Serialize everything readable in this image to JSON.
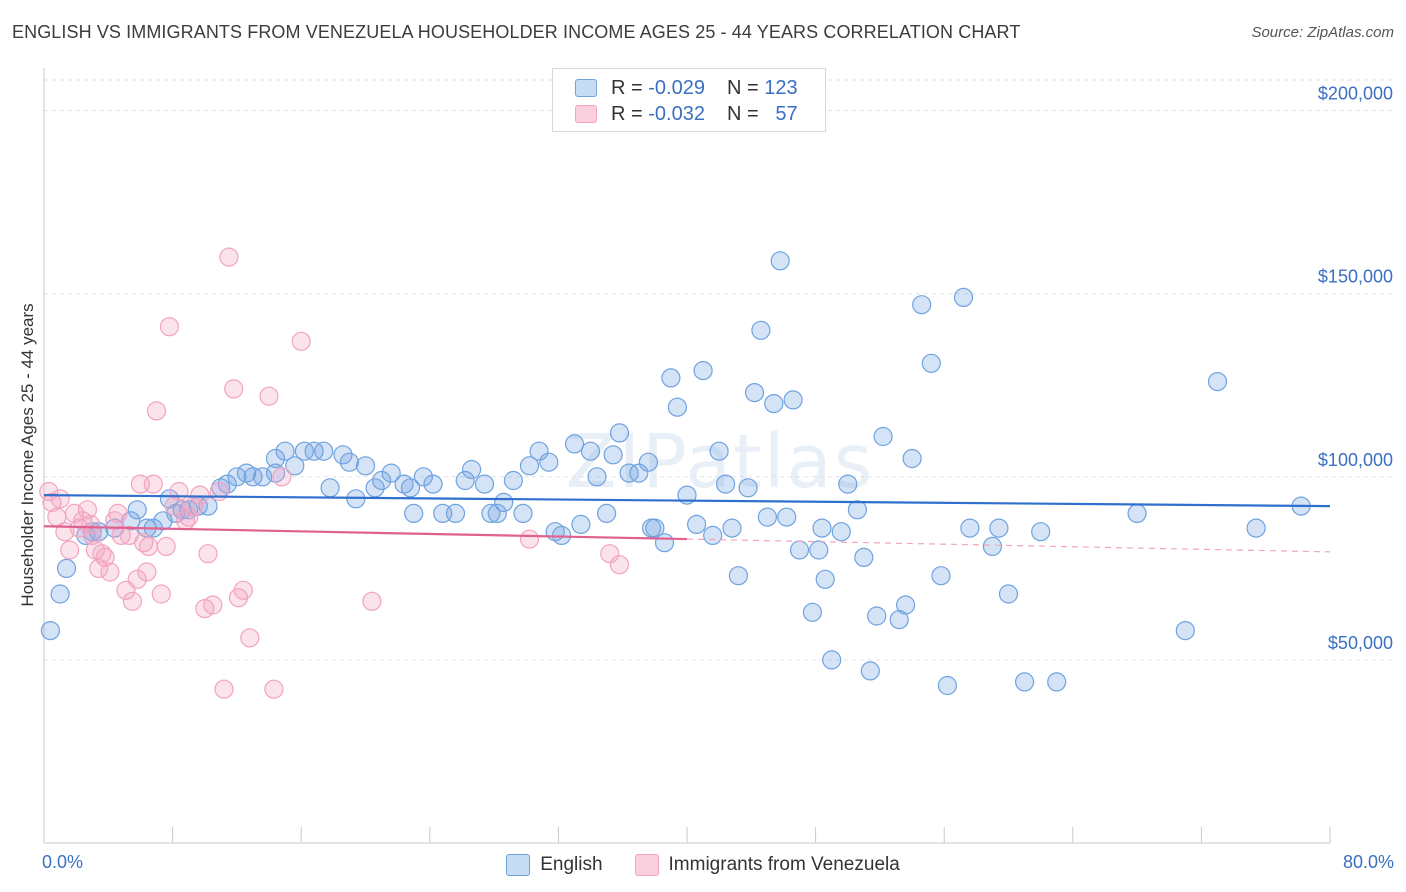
{
  "title": "ENGLISH VS IMMIGRANTS FROM VENEZUELA HOUSEHOLDER INCOME AGES 25 - 44 YEARS CORRELATION CHART",
  "source": "Source: ZipAtlas.com",
  "watermark": "ZIPatlas",
  "colors": {
    "english": "#6fa3e0",
    "english_line": "#2f6fce",
    "venezuela": "#f3a3bf",
    "venezuela_line": "#e06090",
    "axis_text": "#3a6fc4",
    "grid": "#e2e2e2"
  },
  "legend_top": {
    "english": {
      "r_label": "R =",
      "r_value": "-0.029",
      "n_label": "N =",
      "n_value": "123"
    },
    "venezuela": {
      "r_label": "R =",
      "r_value": "-0.032",
      "n_label": "N =",
      "n_value": "57"
    }
  },
  "legend_bottom": {
    "english": "English",
    "venezuela": "Immigrants from Venezuela"
  },
  "chart_data": {
    "type": "scatter",
    "xlabel": "",
    "ylabel": "Householder Income Ages 25 - 44 years",
    "xlim": [
      0,
      80
    ],
    "ylim": [
      0,
      210000
    ],
    "x_tick_labels": [
      "0.0%",
      "80.0%"
    ],
    "y_ticks": [
      {
        "value": 50000,
        "label": "$50,000"
      },
      {
        "value": 100000,
        "label": "$100,000"
      },
      {
        "value": 150000,
        "label": "$150,000"
      },
      {
        "value": 200000,
        "label": "$200,000"
      }
    ],
    "grid": "horizontal dashed",
    "legend_position": "top-center",
    "series": [
      {
        "name": "English",
        "trend": {
          "x0": 0,
          "y0": 95000,
          "x1": 80,
          "y1": 92000
        },
        "points": [
          [
            0.4,
            58000
          ],
          [
            1.0,
            68000
          ],
          [
            1.4,
            75000
          ],
          [
            2.6,
            84000
          ],
          [
            3.0,
            85000
          ],
          [
            3.4,
            85000
          ],
          [
            4.4,
            86000
          ],
          [
            5.4,
            88000
          ],
          [
            5.8,
            91000
          ],
          [
            6.4,
            86000
          ],
          [
            6.8,
            86000
          ],
          [
            7.4,
            88000
          ],
          [
            7.8,
            94000
          ],
          [
            8.2,
            90000
          ],
          [
            8.6,
            91000
          ],
          [
            9.0,
            91000
          ],
          [
            9.6,
            92000
          ],
          [
            10.2,
            92000
          ],
          [
            11.0,
            97000
          ],
          [
            11.4,
            98000
          ],
          [
            12.0,
            100000
          ],
          [
            12.6,
            101000
          ],
          [
            13.0,
            100000
          ],
          [
            13.6,
            100000
          ],
          [
            14.4,
            105000
          ],
          [
            15.0,
            107000
          ],
          [
            15.6,
            103000
          ],
          [
            16.2,
            107000
          ],
          [
            16.8,
            107000
          ],
          [
            17.4,
            107000
          ],
          [
            17.8,
            97000
          ],
          [
            18.6,
            106000
          ],
          [
            19.0,
            104000
          ],
          [
            19.4,
            94000
          ],
          [
            20.0,
            103000
          ],
          [
            20.6,
            97000
          ],
          [
            21.0,
            99000
          ],
          [
            21.6,
            101000
          ],
          [
            22.4,
            98000
          ],
          [
            22.8,
            97000
          ],
          [
            23.0,
            90000
          ],
          [
            23.6,
            100000
          ],
          [
            24.2,
            98000
          ],
          [
            24.8,
            90000
          ],
          [
            25.6,
            90000
          ],
          [
            26.2,
            99000
          ],
          [
            26.6,
            102000
          ],
          [
            27.4,
            98000
          ],
          [
            27.8,
            90000
          ],
          [
            28.6,
            93000
          ],
          [
            29.2,
            99000
          ],
          [
            29.8,
            90000
          ],
          [
            30.2,
            103000
          ],
          [
            30.8,
            107000
          ],
          [
            31.4,
            104000
          ],
          [
            31.8,
            85000
          ],
          [
            32.2,
            84000
          ],
          [
            33.0,
            109000
          ],
          [
            33.4,
            87000
          ],
          [
            34.0,
            107000
          ],
          [
            34.4,
            100000
          ],
          [
            35.0,
            90000
          ],
          [
            35.4,
            106000
          ],
          [
            35.8,
            112000
          ],
          [
            36.4,
            101000
          ],
          [
            37.0,
            101000
          ],
          [
            37.6,
            104000
          ],
          [
            38.0,
            86000
          ],
          [
            38.6,
            82000
          ],
          [
            39.0,
            127000
          ],
          [
            39.4,
            119000
          ],
          [
            40.0,
            95000
          ],
          [
            40.6,
            87000
          ],
          [
            41.0,
            129000
          ],
          [
            41.6,
            84000
          ],
          [
            42.0,
            107000
          ],
          [
            42.4,
            98000
          ],
          [
            42.8,
            86000
          ],
          [
            43.2,
            73000
          ],
          [
            43.8,
            97000
          ],
          [
            44.2,
            123000
          ],
          [
            44.6,
            140000
          ],
          [
            45.0,
            89000
          ],
          [
            45.4,
            120000
          ],
          [
            45.8,
            159000
          ],
          [
            46.2,
            89000
          ],
          [
            46.6,
            121000
          ],
          [
            47.0,
            80000
          ],
          [
            47.8,
            63000
          ],
          [
            48.2,
            80000
          ],
          [
            48.6,
            72000
          ],
          [
            49.0,
            50000
          ],
          [
            49.6,
            85000
          ],
          [
            50.0,
            98000
          ],
          [
            50.6,
            91000
          ],
          [
            51.0,
            78000
          ],
          [
            51.4,
            47000
          ],
          [
            51.8,
            62000
          ],
          [
            52.2,
            111000
          ],
          [
            53.2,
            61000
          ],
          [
            53.6,
            65000
          ],
          [
            54.0,
            105000
          ],
          [
            54.6,
            147000
          ],
          [
            55.2,
            131000
          ],
          [
            55.8,
            73000
          ],
          [
            57.2,
            149000
          ],
          [
            57.6,
            86000
          ],
          [
            59.0,
            81000
          ],
          [
            60.0,
            68000
          ],
          [
            62.0,
            85000
          ],
          [
            63.0,
            44000
          ],
          [
            68.0,
            90000
          ],
          [
            71.0,
            58000
          ],
          [
            73.0,
            126000
          ],
          [
            75.4,
            86000
          ],
          [
            78.2,
            92000
          ],
          [
            59.4,
            86000
          ],
          [
            56.2,
            43000
          ],
          [
            61.0,
            44000
          ],
          [
            37.8,
            86000
          ],
          [
            28.2,
            90000
          ],
          [
            14.4,
            101000
          ],
          [
            48.4,
            86000
          ]
        ]
      },
      {
        "name": "Immigrants from Venezuela",
        "trend": {
          "x0": 0,
          "y0": 86500,
          "x1": 40,
          "y1": 83000,
          "dash_x1": 80,
          "dash_y1": 79500
        },
        "points": [
          [
            0.3,
            96000
          ],
          [
            0.5,
            93000
          ],
          [
            0.8,
            89000
          ],
          [
            1.0,
            94000
          ],
          [
            1.3,
            85000
          ],
          [
            1.6,
            80000
          ],
          [
            1.9,
            90000
          ],
          [
            2.2,
            86000
          ],
          [
            2.4,
            88000
          ],
          [
            2.7,
            91000
          ],
          [
            3.0,
            84000
          ],
          [
            3.2,
            80000
          ],
          [
            3.4,
            75000
          ],
          [
            3.6,
            79000
          ],
          [
            3.8,
            78000
          ],
          [
            4.1,
            74000
          ],
          [
            4.4,
            88000
          ],
          [
            4.6,
            90000
          ],
          [
            4.8,
            84000
          ],
          [
            5.1,
            69000
          ],
          [
            5.3,
            84000
          ],
          [
            5.5,
            66000
          ],
          [
            5.8,
            72000
          ],
          [
            6.0,
            98000
          ],
          [
            6.2,
            82000
          ],
          [
            6.5,
            81000
          ],
          [
            6.8,
            98000
          ],
          [
            7.0,
            118000
          ],
          [
            7.3,
            68000
          ],
          [
            7.6,
            81000
          ],
          [
            7.8,
            141000
          ],
          [
            8.1,
            92000
          ],
          [
            8.4,
            96000
          ],
          [
            8.8,
            88000
          ],
          [
            9.0,
            89000
          ],
          [
            9.3,
            92000
          ],
          [
            10.0,
            64000
          ],
          [
            10.2,
            79000
          ],
          [
            10.5,
            65000
          ],
          [
            10.9,
            96000
          ],
          [
            11.2,
            42000
          ],
          [
            11.5,
            160000
          ],
          [
            11.8,
            124000
          ],
          [
            12.1,
            67000
          ],
          [
            12.4,
            69000
          ],
          [
            12.8,
            56000
          ],
          [
            14.0,
            122000
          ],
          [
            14.3,
            42000
          ],
          [
            14.8,
            100000
          ],
          [
            16.0,
            137000
          ],
          [
            20.4,
            66000
          ],
          [
            30.2,
            83000
          ],
          [
            35.2,
            79000
          ],
          [
            35.8,
            76000
          ],
          [
            9.7,
            95000
          ],
          [
            6.4,
            74000
          ],
          [
            2.9,
            87000
          ]
        ]
      }
    ]
  }
}
